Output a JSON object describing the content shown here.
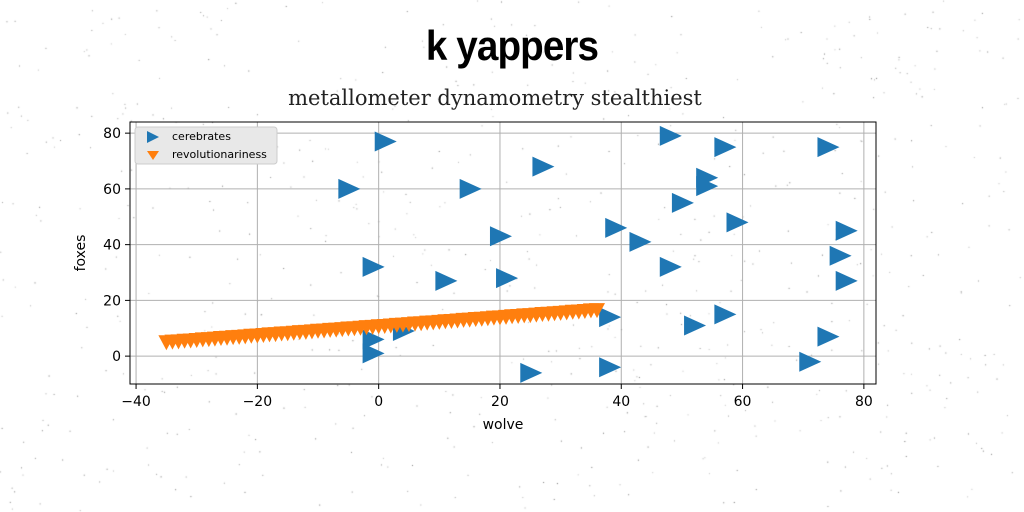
{
  "colors": {
    "series_1": "#1f77b4",
    "series_2": "#ff7f0e",
    "grid": "#b0b0b0",
    "legend_bg": "#e8e8e8"
  },
  "chart_data": {
    "type": "scatter",
    "title": "k yappers",
    "subtitle": "metallometer dynamometry stealthiest",
    "xlabel": "wolve",
    "ylabel": "foxes",
    "xlim": [
      -41,
      82
    ],
    "ylim": [
      -10,
      84
    ],
    "xticks": [
      -40,
      -20,
      0,
      20,
      40,
      60,
      80
    ],
    "yticks": [
      0,
      20,
      40,
      60,
      80
    ],
    "xtick_labels": [
      "−40",
      "−20",
      "0",
      "20",
      "40",
      "60",
      "80"
    ],
    "ytick_labels": [
      "0",
      "20",
      "40",
      "60",
      "80"
    ],
    "grid": true,
    "legend_position": "top-left",
    "series": [
      {
        "name": "cerebrates",
        "marker": "triangle-right",
        "points": [
          [
            1,
            77
          ],
          [
            -5,
            60
          ],
          [
            -1,
            32
          ],
          [
            -1,
            6
          ],
          [
            -1,
            1
          ],
          [
            4,
            9
          ],
          [
            11,
            27
          ],
          [
            15,
            60
          ],
          [
            20,
            43
          ],
          [
            21,
            28
          ],
          [
            25,
            -6
          ],
          [
            27,
            68
          ],
          [
            38,
            14
          ],
          [
            38,
            -4
          ],
          [
            39,
            46
          ],
          [
            43,
            41
          ],
          [
            48,
            32
          ],
          [
            48,
            79
          ],
          [
            50,
            55
          ],
          [
            52,
            11
          ],
          [
            54,
            64
          ],
          [
            54,
            61
          ],
          [
            57,
            15
          ],
          [
            57,
            75
          ],
          [
            59,
            48
          ],
          [
            71,
            -2
          ],
          [
            74,
            7
          ],
          [
            74,
            75
          ],
          [
            77,
            45
          ],
          [
            76,
            36
          ],
          [
            77,
            27
          ]
        ]
      },
      {
        "name": "revolutionariness",
        "marker": "triangle-down",
        "points": [
          [
            -35,
            5.0
          ],
          [
            -34,
            5.2
          ],
          [
            -33,
            5.3
          ],
          [
            -32,
            5.5
          ],
          [
            -31,
            5.6
          ],
          [
            -30,
            5.8
          ],
          [
            -29,
            6.0
          ],
          [
            -28,
            6.1
          ],
          [
            -27,
            6.3
          ],
          [
            -26,
            6.5
          ],
          [
            -25,
            6.6
          ],
          [
            -24,
            6.8
          ],
          [
            -23,
            6.9
          ],
          [
            -22,
            7.1
          ],
          [
            -21,
            7.3
          ],
          [
            -20,
            7.4
          ],
          [
            -19,
            7.6
          ],
          [
            -18,
            7.8
          ],
          [
            -17,
            7.9
          ],
          [
            -16,
            8.1
          ],
          [
            -15,
            8.2
          ],
          [
            -14,
            8.4
          ],
          [
            -13,
            8.6
          ],
          [
            -12,
            8.7
          ],
          [
            -11,
            8.9
          ],
          [
            -10,
            9.1
          ],
          [
            -9,
            9.2
          ],
          [
            -8,
            9.4
          ],
          [
            -7,
            9.5
          ],
          [
            -6,
            9.7
          ],
          [
            -5,
            9.9
          ],
          [
            -4,
            10.0
          ],
          [
            -3,
            10.2
          ],
          [
            -2,
            10.4
          ],
          [
            -1,
            10.5
          ],
          [
            0,
            10.7
          ],
          [
            1,
            10.8
          ],
          [
            2,
            11.0
          ],
          [
            3,
            11.2
          ],
          [
            4,
            11.3
          ],
          [
            5,
            11.5
          ],
          [
            6,
            11.7
          ],
          [
            7,
            11.8
          ],
          [
            8,
            12.0
          ],
          [
            9,
            12.1
          ],
          [
            10,
            12.3
          ],
          [
            11,
            12.5
          ],
          [
            12,
            12.6
          ],
          [
            13,
            12.8
          ],
          [
            14,
            13.0
          ],
          [
            15,
            13.1
          ],
          [
            16,
            13.3
          ],
          [
            17,
            13.4
          ],
          [
            18,
            13.6
          ],
          [
            19,
            13.8
          ],
          [
            20,
            13.9
          ],
          [
            21,
            14.1
          ],
          [
            22,
            14.3
          ],
          [
            23,
            14.4
          ],
          [
            24,
            14.6
          ],
          [
            25,
            14.7
          ],
          [
            26,
            14.9
          ],
          [
            27,
            15.1
          ],
          [
            28,
            15.2
          ],
          [
            29,
            15.4
          ],
          [
            30,
            15.5
          ],
          [
            31,
            15.7
          ],
          [
            32,
            15.9
          ],
          [
            33,
            16.0
          ],
          [
            34,
            16.2
          ],
          [
            35,
            16.4
          ],
          [
            36,
            16.5
          ]
        ]
      }
    ]
  }
}
